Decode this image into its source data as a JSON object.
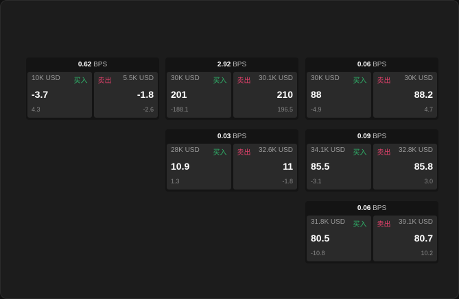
{
  "labels": {
    "buy": "买入",
    "sell": "卖出",
    "unit": "BPS"
  },
  "colors": {
    "buy": "#2fb36a",
    "sell": "#e0406a"
  },
  "cards": [
    {
      "spread": "0.62",
      "bid_size": "10K USD",
      "bid": "-3.7",
      "bid_change": "4.3",
      "ask_size": "5.5K USD",
      "ask": "-1.8",
      "ask_change": "-2.6"
    },
    {
      "spread": "2.92",
      "bid_size": "30K USD",
      "bid": "201",
      "bid_change": "-188.1",
      "ask_size": "30.1K USD",
      "ask": "210",
      "ask_change": "196.5"
    },
    {
      "spread": "0.06",
      "bid_size": "30K USD",
      "bid": "88",
      "bid_change": "-4.9",
      "ask_size": "30K USD",
      "ask": "88.2",
      "ask_change": "4.7"
    },
    {
      "spread": "0.03",
      "bid_size": "28K USD",
      "bid": "10.9",
      "bid_change": "1.3",
      "ask_size": "32.6K USD",
      "ask": "11",
      "ask_change": "-1.8"
    },
    {
      "spread": "0.09",
      "bid_size": "34.1K USD",
      "bid": "85.5",
      "bid_change": "-3.1",
      "ask_size": "32.8K USD",
      "ask": "85.8",
      "ask_change": "3.0"
    },
    {
      "spread": "0.06",
      "bid_size": "31.8K USD",
      "bid": "80.5",
      "bid_change": "-10.8",
      "ask_size": "39.1K USD",
      "ask": "80.7",
      "ask_change": "10.2"
    }
  ]
}
